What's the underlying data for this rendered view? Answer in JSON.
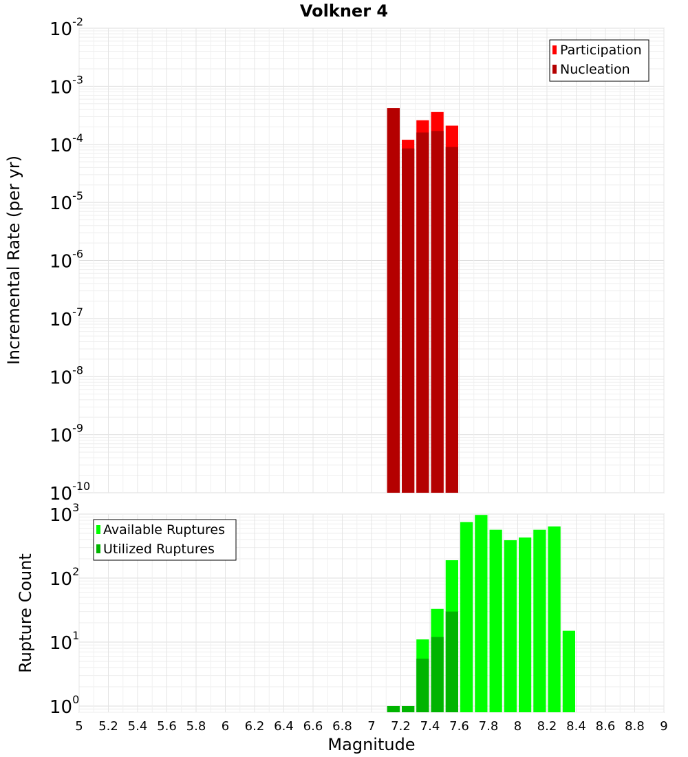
{
  "chart_data": [
    {
      "type": "bar",
      "title": "Volkner 4",
      "xlabel": "",
      "ylabel": "Incremental Rate (per yr)",
      "yscale": "log",
      "ylim": [
        1e-10,
        0.01
      ],
      "xlim": [
        5,
        9
      ],
      "bin_width": 0.1,
      "ytick_exponents": [
        "-2",
        "-3",
        "-4",
        "-5",
        "-6",
        "-7",
        "-8",
        "-9",
        "-10"
      ],
      "legend": {
        "position": "top-right",
        "entries": [
          "Participation",
          "Nucleation"
        ]
      },
      "series": [
        {
          "name": "Participation",
          "color": "#ff0000",
          "x": [
            7.15,
            7.25,
            7.35,
            7.45,
            7.55
          ],
          "values": [
            0.00042,
            0.00012,
            0.00026,
            0.00036,
            0.00021
          ]
        },
        {
          "name": "Nucleation",
          "color": "#b40000",
          "x": [
            7.15,
            7.25,
            7.35,
            7.45,
            7.55
          ],
          "values": [
            0.00042,
            8.5e-05,
            0.00016,
            0.00017,
            9e-05
          ]
        }
      ]
    },
    {
      "type": "bar",
      "title": "",
      "xlabel": "Magnitude",
      "ylabel": "Rupture Count",
      "yscale": "log",
      "ylim": [
        0.8,
        1000
      ],
      "xlim": [
        5,
        9
      ],
      "bin_width": 0.1,
      "ytick_exponents": [
        "3",
        "2",
        "1",
        "0"
      ],
      "xticks": [
        "5",
        "5.2",
        "5.4",
        "5.6",
        "5.8",
        "6",
        "6.2",
        "6.4",
        "6.6",
        "6.8",
        "7",
        "7.2",
        "7.4",
        "7.6",
        "7.8",
        "8",
        "8.2",
        "8.4",
        "8.6",
        "8.8",
        "9"
      ],
      "legend": {
        "position": "top-left",
        "entries": [
          "Available Ruptures",
          "Utilized Ruptures"
        ]
      },
      "series": [
        {
          "name": "Available Ruptures",
          "color": "#00ff00",
          "x": [
            7.15,
            7.25,
            7.35,
            7.45,
            7.55,
            7.65,
            7.75,
            7.85,
            7.95,
            8.05,
            8.15,
            8.25,
            8.35
          ],
          "values": [
            1,
            1,
            11,
            33,
            190,
            750,
            970,
            570,
            390,
            430,
            570,
            640,
            15
          ]
        },
        {
          "name": "Utilized Ruptures",
          "color": "#00b400",
          "x": [
            7.15,
            7.25,
            7.35,
            7.45,
            7.55
          ],
          "values": [
            1,
            1,
            5.5,
            12,
            30
          ]
        }
      ]
    }
  ]
}
